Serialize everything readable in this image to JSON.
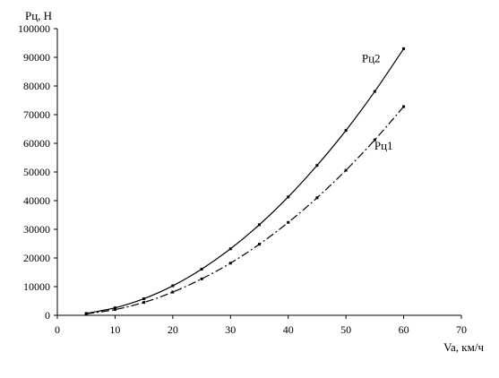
{
  "chart_data": {
    "type": "line",
    "title": "",
    "xlabel": "Va, км/ч",
    "ylabel": "Pц, Н",
    "xlim": [
      0,
      70
    ],
    "ylim": [
      0,
      100000
    ],
    "x_ticks": [
      0,
      10,
      20,
      30,
      40,
      50,
      60,
      70
    ],
    "y_ticks": [
      0,
      10000,
      20000,
      30000,
      40000,
      50000,
      60000,
      70000,
      80000,
      90000,
      100000
    ],
    "grid": false,
    "legend": "none",
    "x": [
      5,
      10,
      15,
      20,
      25,
      30,
      35,
      40,
      45,
      50,
      55,
      60
    ],
    "series": [
      {
        "name": "Pц2",
        "style": "solid",
        "color": "#000000",
        "values": [
          650,
          2600,
          5800,
          10300,
          16100,
          23200,
          31600,
          41300,
          52300,
          64500,
          78100,
          93000
        ]
      },
      {
        "name": "Pц1",
        "style": "dash-dot",
        "color": "#000000",
        "values": [
          500,
          2000,
          4500,
          8100,
          12700,
          18200,
          24800,
          32400,
          41000,
          50600,
          61200,
          72800
        ]
      }
    ]
  }
}
